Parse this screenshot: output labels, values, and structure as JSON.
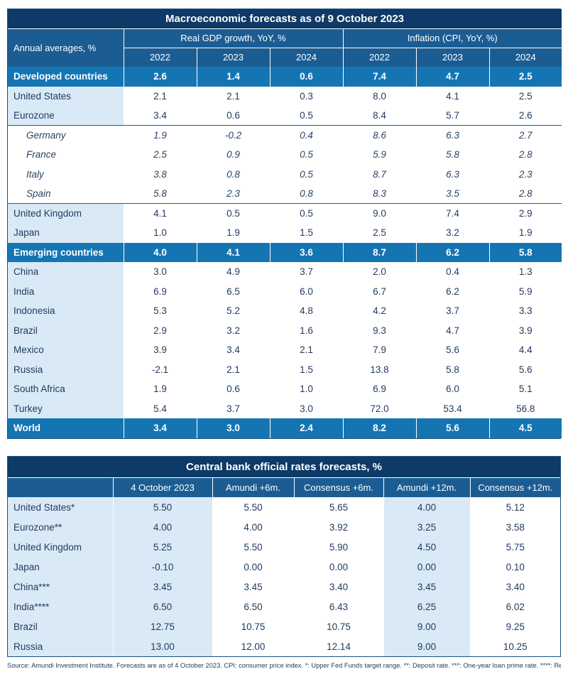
{
  "macro": {
    "title": "Macroeconomic forecasts as of 9 October 2023",
    "row_label_header": "Annual averages, %",
    "gdp_header": "Real GDP growth, YoY, %",
    "inflation_header": "Inflation (CPI, YoY, %)",
    "years": [
      "2022",
      "2023",
      "2024",
      "2022",
      "2023",
      "2024"
    ],
    "rows": [
      {
        "name": "Developed countries",
        "type": "aggregate",
        "values": [
          "2.6",
          "1.4",
          "0.6",
          "7.4",
          "4.7",
          "2.5"
        ]
      },
      {
        "name": "United States",
        "type": "shaded",
        "values": [
          "2.1",
          "2.1",
          "0.3",
          "8.0",
          "4.1",
          "2.5"
        ]
      },
      {
        "name": "Eurozone",
        "type": "shaded",
        "values": [
          "3.4",
          "0.6",
          "0.5",
          "8.4",
          "5.7",
          "2.6"
        ]
      },
      {
        "name": "Germany",
        "type": "sub",
        "values": [
          "1.9",
          "-0.2",
          "0.4",
          "8.6",
          "6.3",
          "2.7"
        ]
      },
      {
        "name": "France",
        "type": "sub",
        "values": [
          "2.5",
          "0.9",
          "0.5",
          "5.9",
          "5.8",
          "2.8"
        ]
      },
      {
        "name": "Italy",
        "type": "sub",
        "values": [
          "3.8",
          "0.8",
          "0.5",
          "8.7",
          "6.3",
          "2.3"
        ]
      },
      {
        "name": "Spain",
        "type": "sub",
        "values": [
          "5.8",
          "2.3",
          "0.8",
          "8.3",
          "3.5",
          "2.8"
        ]
      },
      {
        "name": "United Kingdom",
        "type": "shaded",
        "values": [
          "4.1",
          "0.5",
          "0.5",
          "9.0",
          "7.4",
          "2.9"
        ]
      },
      {
        "name": "Japan",
        "type": "shaded",
        "values": [
          "1.0",
          "1.9",
          "1.5",
          "2.5",
          "3.2",
          "1.9"
        ]
      },
      {
        "name": "Emerging countries",
        "type": "aggregate",
        "values": [
          "4.0",
          "4.1",
          "3.6",
          "8.7",
          "6.2",
          "5.8"
        ]
      },
      {
        "name": "China",
        "type": "shaded",
        "values": [
          "3.0",
          "4.9",
          "3.7",
          "2.0",
          "0.4",
          "1.3"
        ]
      },
      {
        "name": "India",
        "type": "shaded",
        "values": [
          "6.9",
          "6.5",
          "6.0",
          "6.7",
          "6.2",
          "5.9"
        ]
      },
      {
        "name": "Indonesia",
        "type": "shaded",
        "values": [
          "5.3",
          "5.2",
          "4.8",
          "4.2",
          "3.7",
          "3.3"
        ]
      },
      {
        "name": "Brazil",
        "type": "shaded",
        "values": [
          "2.9",
          "3.2",
          "1.6",
          "9.3",
          "4.7",
          "3.9"
        ]
      },
      {
        "name": "Mexico",
        "type": "shaded",
        "values": [
          "3.9",
          "3.4",
          "2.1",
          "7.9",
          "5.6",
          "4.4"
        ]
      },
      {
        "name": "Russia",
        "type": "shaded",
        "values": [
          "-2.1",
          "2.1",
          "1.5",
          "13.8",
          "5.8",
          "5.6"
        ]
      },
      {
        "name": "South Africa",
        "type": "shaded",
        "values": [
          "1.9",
          "0.6",
          "1.0",
          "6.9",
          "6.0",
          "5.1"
        ]
      },
      {
        "name": "Turkey",
        "type": "shaded",
        "values": [
          "5.4",
          "3.7",
          "3.0",
          "72.0",
          "53.4",
          "56.8"
        ]
      },
      {
        "name": "World",
        "type": "aggregate",
        "values": [
          "3.4",
          "3.0",
          "2.4",
          "8.2",
          "5.6",
          "4.5"
        ]
      }
    ]
  },
  "rates": {
    "title": "Central bank official rates forecasts, %",
    "columns": [
      "4 October 2023",
      "Amundi +6m.",
      "Consensus +6m.",
      "Amundi +12m.",
      "Consensus +12m."
    ],
    "rows": [
      {
        "name": "United States*",
        "values": [
          "5.50",
          "5.50",
          "5.65",
          "4.00",
          "5.12"
        ]
      },
      {
        "name": "Eurozone**",
        "values": [
          "4.00",
          "4.00",
          "3.92",
          "3.25",
          "3.58"
        ]
      },
      {
        "name": "United Kingdom",
        "values": [
          "5.25",
          "5.50",
          "5.90",
          "4.50",
          "5.75"
        ]
      },
      {
        "name": "Japan",
        "values": [
          "-0.10",
          "0.00",
          "0.00",
          "0.00",
          "0.10"
        ]
      },
      {
        "name": "China***",
        "values": [
          "3.45",
          "3.45",
          "3.40",
          "3.45",
          "3.40"
        ]
      },
      {
        "name": "India****",
        "values": [
          "6.50",
          "6.50",
          "6.43",
          "6.25",
          "6.02"
        ]
      },
      {
        "name": "Brazil",
        "values": [
          "12.75",
          "10.75",
          "10.75",
          "9.00",
          "9.25"
        ]
      },
      {
        "name": "Russia",
        "values": [
          "13.00",
          "12.00",
          "12.14",
          "9.00",
          "10.25"
        ]
      }
    ]
  },
  "source_note": "Source: Amundi Investment Institute. Forecasts are as of 4 October 2023. CPI: consumer price index. *: Upper Fed Funds target range. **: Deposit rate. ***: One-year loan prime rate. ****: Repurchase rate."
}
